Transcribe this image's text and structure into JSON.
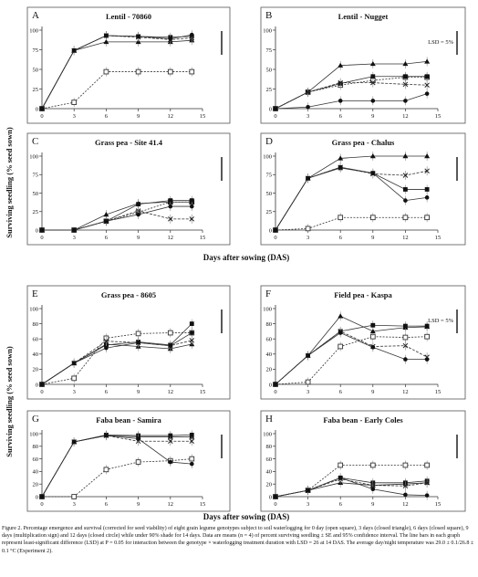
{
  "figure": {
    "shared_ylabel": "Surviving seedling (% seed sown)",
    "shared_xlabel": "Days after sowing (DAS)",
    "lsd_label": "LSD = 5%",
    "caption": "Figure 2. Percentage emergence and survival (corrected for seed viability) of eight grain legume genotypes subject to soil waterlogging for 0 day (open square), 3 days (closed triangle), 6 days (closed square), 9 days (multiplication sign) and 12 days (closed circle) while under 90% shade for 14 days. Data are means (n = 4) of percent surviving seedling ± SE and 95% confidence interval. The line bars in each graph represent least-significant difference (LSD) at P = 0.05 for interaction between the genotype × waterlogging treatment duration with LSD = 26 at 14 DAS. The average day/night temperature was 29.0 ± 0.1/26.8 ± 0.1 °C (Experiment 2)."
  },
  "chart_data": [
    {
      "type": "line",
      "letter": "A",
      "title": "Lentil - 70860",
      "x": [
        0,
        3,
        6,
        9,
        12,
        14
      ],
      "xticks": [
        0,
        3,
        6,
        9,
        12,
        15
      ],
      "xlim": [
        0,
        15
      ],
      "yticks": [
        0,
        25,
        50,
        75,
        100
      ],
      "ylim": [
        0,
        100
      ],
      "lsd_text": "",
      "series": [
        {
          "marker": "open-square",
          "values": [
            0,
            8,
            47,
            47,
            47,
            47
          ]
        },
        {
          "marker": "closed-triangle",
          "values": [
            0,
            74,
            85,
            85,
            85,
            87
          ]
        },
        {
          "marker": "closed-square",
          "values": [
            0,
            74,
            93,
            92,
            91,
            92
          ]
        },
        {
          "marker": "multiplication",
          "values": [
            0,
            74,
            93,
            91,
            88,
            90
          ]
        },
        {
          "marker": "closed-circle",
          "values": [
            0,
            74,
            93,
            92,
            89,
            94
          ]
        }
      ]
    },
    {
      "type": "line",
      "letter": "B",
      "title": "Lentil - Nugget",
      "x": [
        0,
        3,
        6,
        9,
        12,
        14
      ],
      "xticks": [
        0,
        3,
        6,
        9,
        12,
        15
      ],
      "xlim": [
        0,
        15
      ],
      "yticks": [
        0,
        25,
        50,
        75,
        100
      ],
      "ylim": [
        0,
        100
      ],
      "lsd_text": "LSD = 5%",
      "series": [
        {
          "marker": "open-square",
          "values": [
            0,
            21,
            30,
            36,
            40,
            40
          ]
        },
        {
          "marker": "closed-triangle",
          "values": [
            0,
            21,
            55,
            57,
            57,
            60
          ]
        },
        {
          "marker": "closed-square",
          "values": [
            0,
            21,
            32,
            41,
            41,
            41
          ]
        },
        {
          "marker": "multiplication",
          "values": [
            0,
            21,
            33,
            33,
            31,
            30
          ]
        },
        {
          "marker": "closed-circle",
          "values": [
            0,
            2,
            10,
            10,
            10,
            19
          ]
        }
      ]
    },
    {
      "type": "line",
      "letter": "C",
      "title": "Grass pea - Site 41.4",
      "x": [
        0,
        3,
        6,
        9,
        12,
        14
      ],
      "xticks": [
        0,
        3,
        6,
        9,
        12,
        15
      ],
      "xlim": [
        0,
        15
      ],
      "yticks": [
        0,
        25,
        50,
        75,
        100
      ],
      "ylim": [
        0,
        100
      ],
      "lsd_text": "",
      "series": [
        {
          "marker": "open-square",
          "values": [
            0,
            0,
            12,
            24,
            38,
            38
          ]
        },
        {
          "marker": "closed-triangle",
          "values": [
            0,
            0,
            21,
            36,
            38,
            38
          ]
        },
        {
          "marker": "closed-square",
          "values": [
            0,
            0,
            12,
            35,
            40,
            40
          ]
        },
        {
          "marker": "multiplication",
          "values": [
            0,
            0,
            12,
            26,
            15,
            15
          ]
        },
        {
          "marker": "closed-circle",
          "values": [
            0,
            0,
            12,
            21,
            32,
            32
          ]
        }
      ]
    },
    {
      "type": "line",
      "letter": "D",
      "title": "Grass pea - Chalus",
      "x": [
        0,
        3,
        6,
        9,
        12,
        14
      ],
      "xticks": [
        0,
        3,
        6,
        9,
        12,
        15
      ],
      "xlim": [
        0,
        15
      ],
      "yticks": [
        0,
        25,
        50,
        75,
        100
      ],
      "ylim": [
        0,
        100
      ],
      "lsd_text": "",
      "series": [
        {
          "marker": "open-square",
          "values": [
            0,
            2,
            17,
            17,
            17,
            17
          ]
        },
        {
          "marker": "closed-triangle",
          "values": [
            0,
            70,
            97,
            100,
            100,
            100
          ]
        },
        {
          "marker": "closed-square",
          "values": [
            0,
            70,
            84,
            77,
            55,
            55
          ]
        },
        {
          "marker": "multiplication",
          "values": [
            0,
            70,
            85,
            76,
            74,
            80
          ]
        },
        {
          "marker": "closed-circle",
          "values": [
            0,
            70,
            85,
            77,
            40,
            44
          ]
        }
      ]
    },
    {
      "type": "line",
      "letter": "E",
      "title": "Grass pea - 8605",
      "x": [
        0,
        3,
        6,
        9,
        12,
        14
      ],
      "xticks": [
        0,
        3,
        6,
        9,
        12,
        15
      ],
      "xlim": [
        0,
        15
      ],
      "yticks": [
        0,
        20,
        40,
        60,
        80,
        100
      ],
      "ylim": [
        0,
        100
      ],
      "lsd_text": "",
      "series": [
        {
          "marker": "open-square",
          "values": [
            0,
            8,
            61,
            67,
            68,
            68
          ]
        },
        {
          "marker": "closed-triangle",
          "values": [
            0,
            28,
            53,
            50,
            47,
            53
          ]
        },
        {
          "marker": "closed-square",
          "values": [
            0,
            28,
            52,
            56,
            52,
            80
          ]
        },
        {
          "marker": "multiplication",
          "values": [
            0,
            28,
            57,
            55,
            51,
            58
          ]
        },
        {
          "marker": "closed-circle",
          "values": [
            0,
            28,
            48,
            55,
            51,
            68
          ]
        }
      ]
    },
    {
      "type": "line",
      "letter": "F",
      "title": "Field pea - Kaspa",
      "x": [
        0,
        3,
        6,
        9,
        12,
        14
      ],
      "xticks": [
        0,
        3,
        6,
        9,
        12,
        15
      ],
      "xlim": [
        0,
        15
      ],
      "yticks": [
        0,
        20,
        40,
        60,
        80,
        100
      ],
      "ylim": [
        0,
        100
      ],
      "lsd_text": "LSD = 5%",
      "series": [
        {
          "marker": "open-square",
          "values": [
            0,
            3,
            50,
            63,
            62,
            63
          ]
        },
        {
          "marker": "closed-triangle",
          "values": [
            0,
            38,
            90,
            70,
            75,
            76
          ]
        },
        {
          "marker": "closed-square",
          "values": [
            0,
            38,
            70,
            78,
            77,
            77
          ]
        },
        {
          "marker": "multiplication",
          "values": [
            0,
            38,
            70,
            50,
            51,
            36
          ]
        },
        {
          "marker": "closed-circle",
          "values": [
            0,
            38,
            68,
            49,
            33,
            33
          ]
        }
      ]
    },
    {
      "type": "line",
      "letter": "G",
      "title": "Faba bean - Samira",
      "x": [
        0,
        3,
        6,
        9,
        12,
        14
      ],
      "xticks": [
        0,
        3,
        6,
        9,
        12,
        15
      ],
      "xlim": [
        0,
        15
      ],
      "yticks": [
        0,
        20,
        40,
        60,
        80,
        100
      ],
      "ylim": [
        0,
        100
      ],
      "lsd_text": "",
      "series": [
        {
          "marker": "open-square",
          "values": [
            0,
            0,
            43,
            55,
            57,
            60
          ]
        },
        {
          "marker": "closed-triangle",
          "values": [
            0,
            87,
            97,
            95,
            95,
            95
          ]
        },
        {
          "marker": "closed-square",
          "values": [
            0,
            87,
            98,
            97,
            97,
            98
          ]
        },
        {
          "marker": "multiplication",
          "values": [
            0,
            87,
            97,
            88,
            88,
            88
          ]
        },
        {
          "marker": "closed-circle",
          "values": [
            0,
            87,
            97,
            92,
            55,
            52
          ]
        }
      ]
    },
    {
      "type": "line",
      "letter": "H",
      "title": "Faba bean - Early Coles",
      "x": [
        0,
        3,
        6,
        9,
        12,
        14
      ],
      "xticks": [
        0,
        3,
        6,
        9,
        12,
        15
      ],
      "xlim": [
        0,
        15
      ],
      "yticks": [
        0,
        20,
        40,
        60,
        80,
        100
      ],
      "ylim": [
        0,
        100
      ],
      "lsd_text": "",
      "series": [
        {
          "marker": "open-square",
          "values": [
            0,
            10,
            50,
            50,
            50,
            50
          ]
        },
        {
          "marker": "closed-triangle",
          "values": [
            0,
            10,
            22,
            18,
            20,
            22
          ]
        },
        {
          "marker": "closed-square",
          "values": [
            0,
            10,
            30,
            22,
            22,
            25
          ]
        },
        {
          "marker": "multiplication",
          "values": [
            0,
            10,
            28,
            18,
            17,
            22
          ]
        },
        {
          "marker": "closed-circle",
          "values": [
            0,
            10,
            30,
            12,
            3,
            2
          ]
        }
      ]
    }
  ]
}
